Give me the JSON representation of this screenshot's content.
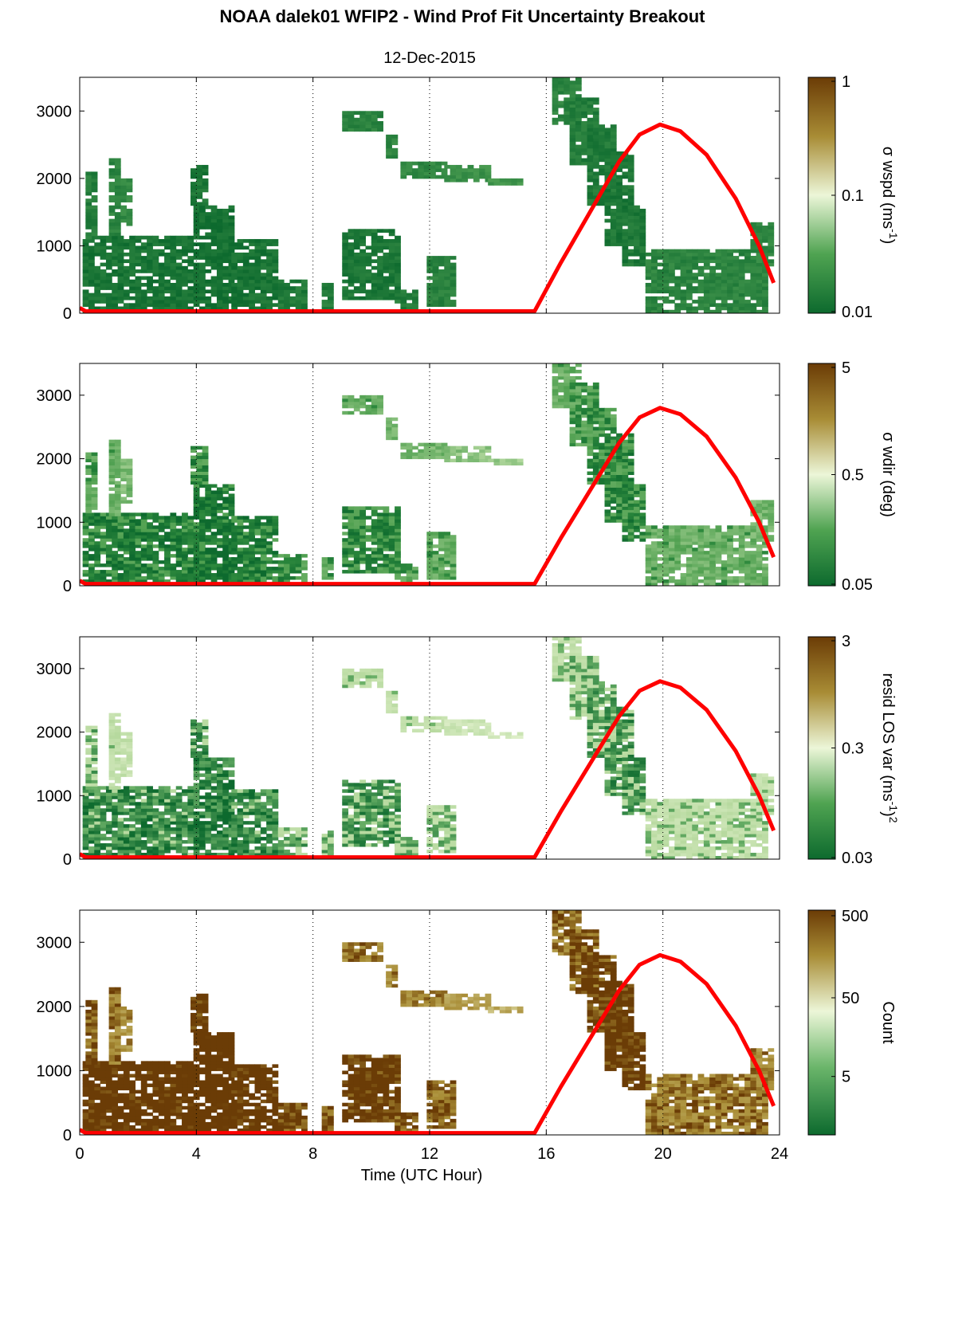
{
  "title": "NOAA dalek01 WFIP2 - Wind Prof Fit Uncertainty Breakout",
  "subtitle": "12-Dec-2015",
  "colors": {
    "dark_green": "#0d6a2e",
    "light": "#ecf6d8",
    "dark_brown": "#6b3c06",
    "curve": "#ff0000"
  },
  "chart_data": [
    {
      "type": "heatmap",
      "name": "σ wspd",
      "xlabel": "",
      "ylabel": "",
      "xlim": [
        0,
        24
      ],
      "ylim": [
        0,
        3500
      ],
      "xticks": [
        "0",
        "4",
        "8",
        "12",
        "16",
        "20",
        "24"
      ],
      "yticks": [
        "0",
        "1000",
        "2000",
        "3000"
      ],
      "colorbar": {
        "label_main": "σ wspd (ms",
        "label_sup": "-1",
        "label_end": ")",
        "ticks": [
          "1",
          "0.1",
          "0.01"
        ],
        "scale": "log",
        "range": [
          0.01,
          1
        ]
      }
    },
    {
      "type": "heatmap",
      "name": "σ wdir",
      "xlabel": "",
      "ylabel": "",
      "xlim": [
        0,
        24
      ],
      "ylim": [
        0,
        3500
      ],
      "xticks": [
        "0",
        "4",
        "8",
        "12",
        "16",
        "20",
        "24"
      ],
      "yticks": [
        "0",
        "1000",
        "2000",
        "3000"
      ],
      "colorbar": {
        "label_main": "σ wdir (deg)",
        "label_sup": "",
        "label_end": "",
        "ticks": [
          "5",
          "0.5",
          "0.05"
        ],
        "scale": "log",
        "range": [
          0.05,
          5
        ]
      }
    },
    {
      "type": "heatmap",
      "name": "resid LOS var",
      "xlabel": "",
      "ylabel": "",
      "xlim": [
        0,
        24
      ],
      "ylim": [
        0,
        3500
      ],
      "xticks": [
        "0",
        "4",
        "8",
        "12",
        "16",
        "20",
        "24"
      ],
      "yticks": [
        "0",
        "1000",
        "2000",
        "3000"
      ],
      "colorbar": {
        "label_main": "resid LOS var (ms",
        "label_sup": "-1",
        "label_end": ")",
        "label_sup2": "2",
        "ticks": [
          "3",
          "0.3",
          "0.03"
        ],
        "scale": "log",
        "range": [
          0.03,
          3
        ]
      }
    },
    {
      "type": "heatmap",
      "name": "Count",
      "xlabel": "Time (UTC Hour)",
      "ylabel": "",
      "xlim": [
        0,
        24
      ],
      "ylim": [
        0,
        3500
      ],
      "xticks": [
        "0",
        "4",
        "8",
        "12",
        "16",
        "20",
        "24"
      ],
      "yticks": [
        "0",
        "1000",
        "2000",
        "3000"
      ],
      "colorbar": {
        "label_main": "Count",
        "label_sup": "",
        "label_end": "",
        "ticks": [
          "500",
          "50",
          "5"
        ],
        "scale": "log",
        "range": [
          1,
          500
        ]
      }
    }
  ],
  "overlay_curve": {
    "points": [
      [
        0,
        80
      ],
      [
        0.2,
        30
      ],
      [
        15.6,
        30
      ],
      [
        16.5,
        750
      ],
      [
        17.5,
        1500
      ],
      [
        18.5,
        2250
      ],
      [
        19.2,
        2650
      ],
      [
        19.9,
        2800
      ],
      [
        20.6,
        2700
      ],
      [
        21.5,
        2350
      ],
      [
        22.5,
        1700
      ],
      [
        23.3,
        1000
      ],
      [
        23.8,
        450
      ]
    ]
  },
  "heat_regions": [
    {
      "x0": 0.1,
      "x1": 3.9,
      "z0": 0,
      "z1": 1150,
      "level": 0.85
    },
    {
      "x0": 0.2,
      "x1": 0.6,
      "z0": 1100,
      "z1": 2100,
      "level": 0.7
    },
    {
      "x0": 1.0,
      "x1": 1.4,
      "z0": 1100,
      "z1": 2300,
      "level": 0.6
    },
    {
      "x0": 1.4,
      "x1": 1.7,
      "z0": 1300,
      "z1": 2000,
      "level": 0.5
    },
    {
      "x0": 3.9,
      "x1": 5.2,
      "z0": 0,
      "z1": 1600,
      "level": 0.9
    },
    {
      "x0": 3.8,
      "x1": 4.3,
      "z0": 1600,
      "z1": 2200,
      "level": 0.8
    },
    {
      "x0": 5.2,
      "x1": 6.8,
      "z0": 0,
      "z1": 1100,
      "level": 0.85
    },
    {
      "x0": 6.8,
      "x1": 7.7,
      "z0": 0,
      "z1": 500,
      "level": 0.75
    },
    {
      "x0": 8.3,
      "x1": 8.7,
      "z0": 0,
      "z1": 450,
      "level": 0.7
    },
    {
      "x0": 9.0,
      "x1": 10.8,
      "z0": 200,
      "z1": 1250,
      "level": 0.8
    },
    {
      "x0": 10.8,
      "x1": 11.5,
      "z0": 0,
      "z1": 350,
      "level": 0.7
    },
    {
      "x0": 11.9,
      "x1": 12.8,
      "z0": 100,
      "z1": 850,
      "level": 0.65
    },
    {
      "x0": 9.0,
      "x1": 10.3,
      "z0": 2700,
      "z1": 3000,
      "level": 0.6
    },
    {
      "x0": 10.5,
      "x1": 10.8,
      "z0": 2300,
      "z1": 2650,
      "level": 0.55
    },
    {
      "x0": 11.0,
      "x1": 12.5,
      "z0": 2000,
      "z1": 2250,
      "level": 0.55
    },
    {
      "x0": 12.5,
      "x1": 14.0,
      "z0": 1950,
      "z1": 2200,
      "level": 0.4
    },
    {
      "x0": 14.0,
      "x1": 15.1,
      "z0": 1900,
      "z1": 2000,
      "level": 0.3
    },
    {
      "x0": 16.2,
      "x1": 17.0,
      "z0": 2800,
      "z1": 3500,
      "level": 0.6
    },
    {
      "x0": 16.8,
      "x1": 17.6,
      "z0": 2200,
      "z1": 3200,
      "level": 0.7
    },
    {
      "x0": 17.4,
      "x1": 18.2,
      "z0": 1600,
      "z1": 2800,
      "level": 0.75
    },
    {
      "x0": 18.0,
      "x1": 18.8,
      "z0": 1000,
      "z1": 2400,
      "level": 0.8
    },
    {
      "x0": 18.6,
      "x1": 19.4,
      "z0": 700,
      "z1": 1600,
      "level": 0.8
    },
    {
      "x0": 19.4,
      "x1": 23.4,
      "z0": 0,
      "z1": 950,
      "level": 0.6
    },
    {
      "x0": 23.0,
      "x1": 23.6,
      "z0": 700,
      "z1": 1350,
      "level": 0.55
    }
  ]
}
